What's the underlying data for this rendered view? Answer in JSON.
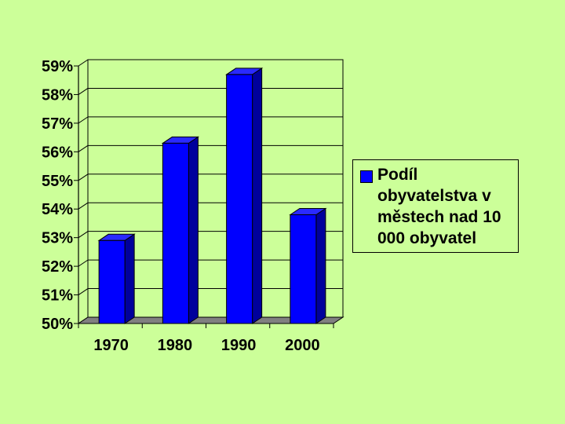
{
  "chart_data": {
    "type": "bar",
    "categories": [
      "1970",
      "1980",
      "1990",
      "2000"
    ],
    "series": [
      {
        "name": "Podíl obyvatelstva v městech nad 10 000 obyvatel",
        "values": [
          52.9,
          56.3,
          58.7,
          53.8
        ]
      }
    ],
    "ylim": [
      50,
      59
    ],
    "y_ticks": [
      "50%",
      "51%",
      "52%",
      "53%",
      "54%",
      "55%",
      "56%",
      "57%",
      "58%",
      "59%"
    ],
    "grid": true,
    "legend": "right",
    "style": "3d",
    "colors": {
      "bar": "#0000ff",
      "bar_top": "#2a2aff",
      "bar_side": "#00009c",
      "background": "#ccff99",
      "floor": "#808080"
    }
  }
}
